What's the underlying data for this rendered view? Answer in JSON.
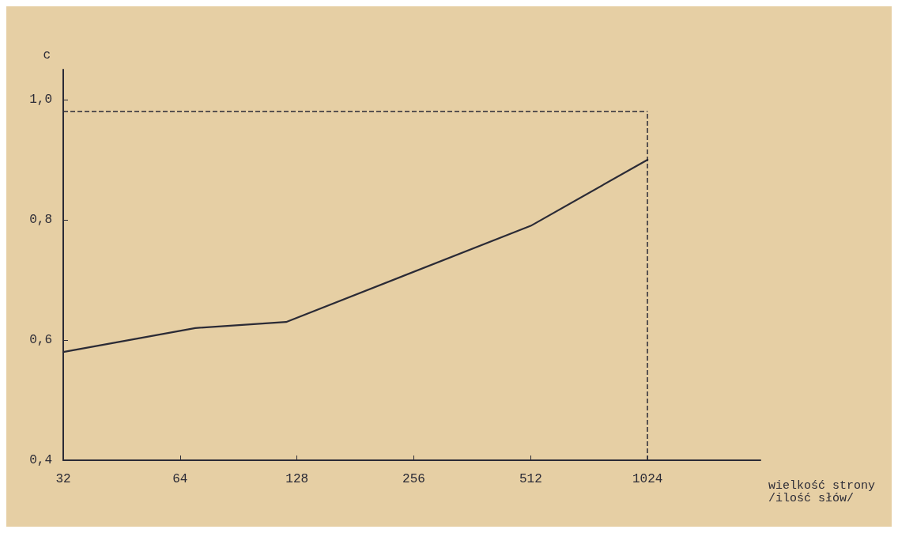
{
  "chart_data": {
    "type": "line",
    "xlabel": "wielkość strony\n/ilość słów/",
    "ylabel": "c",
    "x": [
      32,
      70,
      120,
      512,
      1024
    ],
    "series": [
      {
        "color": "#2b2b36",
        "values": [
          0.58,
          0.62,
          0.63,
          0.79,
          0.9
        ]
      }
    ],
    "log": "x",
    "xlim": [
      32,
      2000
    ],
    "xticks": [
      32,
      64,
      128,
      256,
      512,
      1024
    ],
    "ylim": [
      0.4,
      1.05
    ],
    "yticks": [
      {
        "value": 0.4,
        "label": "0,4"
      },
      {
        "value": 0.6,
        "label": "0,6"
      },
      {
        "value": 0.8,
        "label": "0,8"
      },
      {
        "value": 1.0,
        "label": "1,0"
      }
    ],
    "ref_lines": [
      {
        "axis": "y",
        "value": 0.98,
        "line_style": "dashed"
      },
      {
        "axis": "x",
        "value": 1024,
        "line_style": "dashed"
      }
    ],
    "grid": false,
    "marker": "none",
    "line_style": "solid"
  }
}
